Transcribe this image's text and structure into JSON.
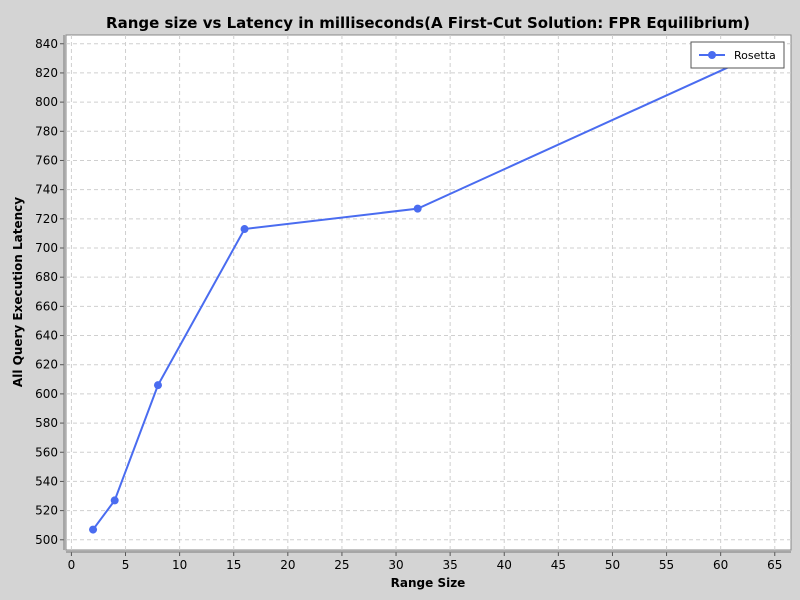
{
  "chart_data": {
    "type": "line",
    "title": "Range size vs Latency in milliseconds(A First-Cut Solution: FPR Equilibrium)",
    "xlabel": "Range Size",
    "ylabel": "All Query Execution Latency",
    "xlim": [
      -0.5,
      66.5
    ],
    "ylim": [
      493,
      846
    ],
    "xticks": [
      0,
      5,
      10,
      15,
      20,
      25,
      30,
      35,
      40,
      45,
      50,
      55,
      60,
      65
    ],
    "yticks": [
      500,
      520,
      540,
      560,
      580,
      600,
      620,
      640,
      660,
      680,
      700,
      720,
      740,
      760,
      780,
      800,
      820,
      840
    ],
    "grid": true,
    "legend_position": "top-right",
    "series": [
      {
        "name": "Rosetta",
        "color": "#4a6cf0",
        "x": [
          2,
          4,
          8,
          16,
          32,
          64
        ],
        "y": [
          507,
          527,
          606,
          713,
          727,
          835
        ]
      }
    ]
  }
}
